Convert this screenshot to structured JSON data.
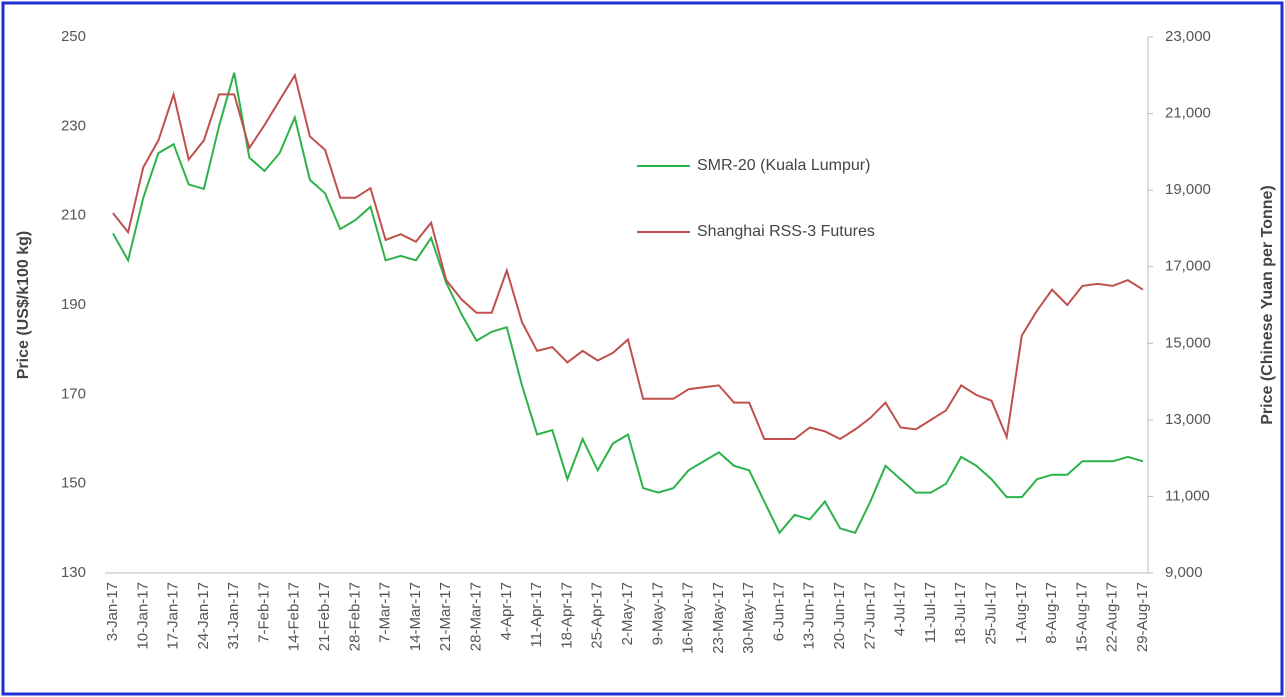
{
  "chart_data": {
    "type": "line",
    "y_label": "Price (US$/k100 kg)",
    "y2_label": "Price  (Chinese Yuan per Tonne)",
    "categories": [
      "3-Jan-17",
      null,
      "10-Jan-17",
      null,
      "17-Jan-17",
      null,
      "24-Jan-17",
      null,
      "31-Jan-17",
      null,
      "7-Feb-17",
      null,
      "14-Feb-17",
      null,
      "21-Feb-17",
      null,
      "28-Feb-17",
      null,
      "7-Mar-17",
      null,
      "14-Mar-17",
      null,
      "21-Mar-17",
      null,
      "28-Mar-17",
      null,
      "4-Apr-17",
      null,
      "11-Apr-17",
      null,
      "18-Apr-17",
      null,
      "25-Apr-17",
      null,
      "2-May-17",
      null,
      "9-May-17",
      null,
      "16-May-17",
      null,
      "23-May-17",
      null,
      "30-May-17",
      null,
      "6-Jun-17",
      null,
      "13-Jun-17",
      null,
      "20-Jun-17",
      null,
      "27-Jun-17",
      null,
      "4-Jul-17",
      null,
      "11-Jul-17",
      null,
      "18-Jul-17",
      null,
      "25-Jul-17",
      null,
      "1-Aug-17",
      null,
      "8-Aug-17",
      null,
      "15-Aug-17",
      null,
      "22-Aug-17",
      null,
      "29-Aug-17"
    ],
    "series": [
      {
        "name": "SMR-20 (Kuala Lumpur)",
        "color": "#2db24a",
        "axis": "y",
        "values": [
          206,
          200,
          214,
          224,
          226,
          217,
          216,
          230,
          242,
          223,
          220,
          224,
          232,
          218,
          215,
          207,
          209,
          212,
          200,
          201,
          200,
          205,
          195,
          188,
          182,
          184,
          185,
          172,
          161,
          162,
          151,
          160,
          153,
          159,
          161,
          149,
          148,
          149,
          153,
          155,
          157,
          154,
          153,
          146,
          139,
          143,
          142,
          146,
          140,
          139,
          146,
          154,
          151,
          148,
          148,
          150,
          156,
          154,
          151,
          147,
          147,
          151,
          152,
          152,
          155,
          155,
          155,
          156,
          155
        ]
      },
      {
        "name": "Shanghai RSS-3 Futures",
        "color": "#c0504d",
        "axis": "y2",
        "values": [
          18400,
          17900,
          19600,
          20300,
          21500,
          19800,
          20300,
          21500,
          21500,
          20100,
          20700,
          21350,
          22000,
          20400,
          20050,
          18800,
          18800,
          19050,
          17700,
          17850,
          17650,
          18150,
          16650,
          16150,
          15800,
          15800,
          16900,
          15550,
          14800,
          14900,
          14500,
          14800,
          14550,
          14750,
          15100,
          13550,
          13550,
          13550,
          13800,
          13850,
          13900,
          13450,
          13450,
          12500,
          12500,
          12500,
          12800,
          12700,
          12500,
          12750,
          13050,
          13450,
          12800,
          12750,
          13000,
          13250,
          13900,
          13650,
          13500,
          12550,
          15200,
          15850,
          16400,
          16000,
          16500,
          16550,
          16500,
          16650,
          16400
        ]
      }
    ],
    "ylim": [
      130,
      250
    ],
    "yticks": [
      130,
      150,
      170,
      190,
      210,
      230,
      250
    ],
    "y2lim": [
      9000,
      23000
    ],
    "y2ticks": [
      {
        "value": 9000,
        "label": "9,000"
      },
      {
        "value": 11000,
        "label": "11,000"
      },
      {
        "value": 13000,
        "label": "13,000"
      },
      {
        "value": 15000,
        "label": "15,000"
      },
      {
        "value": 17000,
        "label": "17,000"
      },
      {
        "value": 19000,
        "label": "19,000"
      },
      {
        "value": 21000,
        "label": "21,000"
      },
      {
        "value": 23000,
        "label": "23,000"
      }
    ],
    "grid": false,
    "legend": "upper right"
  }
}
